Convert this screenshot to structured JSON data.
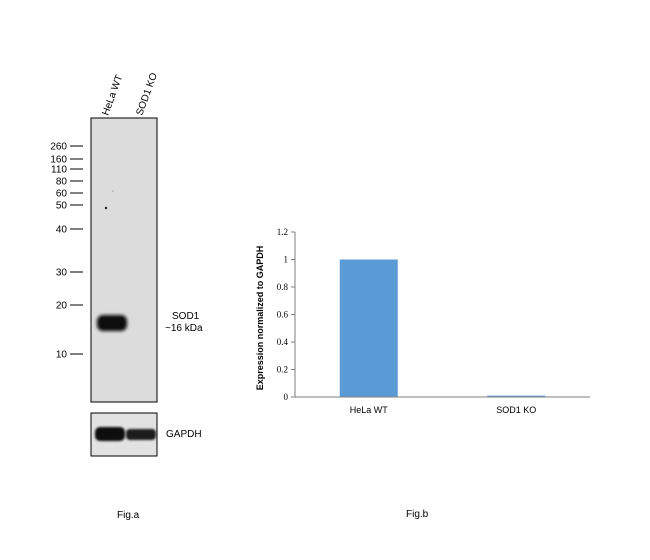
{
  "blot": {
    "lanes": [
      "HeLa WT",
      "SOD1 KO"
    ],
    "markers": [
      "260",
      "160",
      "110",
      "80",
      "60",
      "50",
      "40",
      "30",
      "20",
      "10"
    ],
    "band_label": "SOD1",
    "band_size": "~16 kDa",
    "loading_label": "GAPDH",
    "caption": "Fig.a"
  },
  "chart_data": {
    "type": "bar",
    "categories": [
      "HeLa WT",
      "SOD1 KO"
    ],
    "values": [
      1,
      0.01
    ],
    "ylabel": "Expression normalized to GAPDH",
    "ylim": [
      0,
      1.2
    ],
    "yticks": [
      "0",
      "0.2",
      "0.4",
      "0.6",
      "0.8",
      "1",
      "1.2"
    ],
    "bar_color": "#5b9bd5",
    "caption": "Fig.b"
  }
}
